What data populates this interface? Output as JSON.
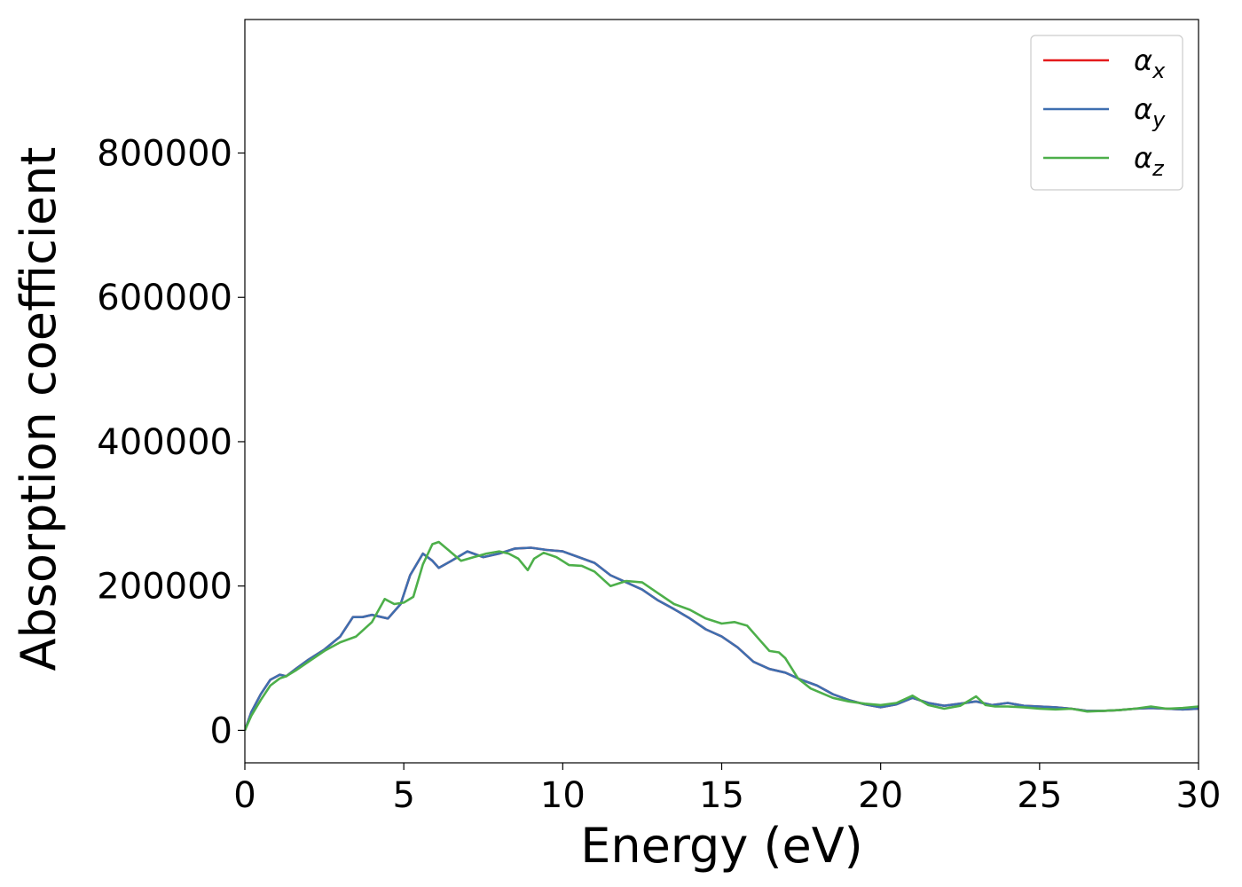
{
  "chart_data": {
    "type": "line",
    "title": "",
    "xlabel": "Energy (eV)",
    "ylabel": "Absorption coefficient",
    "xlim": [
      0,
      30
    ],
    "ylim": [
      -45000,
      985000
    ],
    "xticks": [
      0,
      5,
      10,
      15,
      20,
      25,
      30
    ],
    "yticks": [
      0,
      200000,
      400000,
      600000,
      800000
    ],
    "grid": false,
    "legend_position": "top-right",
    "series": [
      {
        "name": "α_x",
        "symbol": "α",
        "subscript": "x",
        "color": "#e41a1c",
        "x": [
          0,
          0.2,
          0.5,
          0.8,
          1.1,
          1.3,
          1.6,
          2.0,
          2.5,
          3.0,
          3.4,
          3.7,
          4.0,
          4.5,
          4.9,
          5.2,
          5.6,
          5.9,
          6.1,
          6.5,
          7.0,
          7.5,
          8.0,
          8.5,
          9.0,
          9.5,
          10.0,
          10.5,
          11.0,
          11.5,
          12.0,
          12.5,
          13.0,
          13.5,
          14.0,
          14.5,
          15.0,
          15.5,
          16.0,
          16.5,
          17.0,
          17.5,
          18.0,
          18.5,
          19.0,
          19.5,
          20.0,
          20.5,
          21.0,
          21.5,
          22.0,
          22.5,
          23.0,
          23.5,
          24.0,
          24.5,
          25.0,
          25.5,
          26.0,
          26.5,
          27.0,
          27.5,
          28.0,
          28.5,
          29.0,
          29.5,
          30.0
        ],
        "values": [
          0,
          25000,
          50000,
          70000,
          77000,
          75000,
          85000,
          98000,
          112000,
          130000,
          157000,
          157000,
          160000,
          155000,
          175000,
          215000,
          245000,
          235000,
          225000,
          235000,
          248000,
          240000,
          245000,
          252000,
          253000,
          250000,
          248000,
          240000,
          232000,
          215000,
          205000,
          195000,
          180000,
          168000,
          155000,
          140000,
          130000,
          115000,
          95000,
          85000,
          80000,
          70000,
          62000,
          50000,
          42000,
          36000,
          32000,
          36000,
          45000,
          38000,
          34000,
          37000,
          40000,
          35000,
          38000,
          34000,
          33000,
          32000,
          30000,
          27000,
          27000,
          28000,
          30000,
          31000,
          30000,
          29000,
          30000
        ]
      },
      {
        "name": "α_y",
        "symbol": "α",
        "subscript": "y",
        "color": "#3e6fb0",
        "x": [
          0,
          0.2,
          0.5,
          0.8,
          1.1,
          1.3,
          1.6,
          2.0,
          2.5,
          3.0,
          3.4,
          3.7,
          4.0,
          4.5,
          4.9,
          5.2,
          5.6,
          5.9,
          6.1,
          6.5,
          7.0,
          7.5,
          8.0,
          8.5,
          9.0,
          9.5,
          10.0,
          10.5,
          11.0,
          11.5,
          12.0,
          12.5,
          13.0,
          13.5,
          14.0,
          14.5,
          15.0,
          15.5,
          16.0,
          16.5,
          17.0,
          17.5,
          18.0,
          18.5,
          19.0,
          19.5,
          20.0,
          20.5,
          21.0,
          21.5,
          22.0,
          22.5,
          23.0,
          23.5,
          24.0,
          24.5,
          25.0,
          25.5,
          26.0,
          26.5,
          27.0,
          27.5,
          28.0,
          28.5,
          29.0,
          29.5,
          30.0
        ],
        "values": [
          0,
          25000,
          50000,
          70000,
          77000,
          75000,
          85000,
          98000,
          112000,
          130000,
          157000,
          157000,
          160000,
          155000,
          175000,
          215000,
          245000,
          235000,
          225000,
          235000,
          248000,
          240000,
          245000,
          252000,
          253000,
          250000,
          248000,
          240000,
          232000,
          215000,
          205000,
          195000,
          180000,
          168000,
          155000,
          140000,
          130000,
          115000,
          95000,
          85000,
          80000,
          70000,
          62000,
          50000,
          42000,
          36000,
          32000,
          36000,
          45000,
          38000,
          34000,
          37000,
          40000,
          35000,
          38000,
          34000,
          33000,
          32000,
          30000,
          27000,
          27000,
          28000,
          30000,
          31000,
          30000,
          29000,
          30000
        ]
      },
      {
        "name": "α_z",
        "symbol": "α",
        "subscript": "z",
        "color": "#4daf4a",
        "x": [
          0,
          0.2,
          0.5,
          0.8,
          1.1,
          1.3,
          1.6,
          2.0,
          2.5,
          3.0,
          3.5,
          4.0,
          4.4,
          4.7,
          5.0,
          5.3,
          5.6,
          5.9,
          6.1,
          6.4,
          6.8,
          7.2,
          7.6,
          8.0,
          8.3,
          8.6,
          8.9,
          9.1,
          9.4,
          9.8,
          10.2,
          10.6,
          11.0,
          11.5,
          12.0,
          12.5,
          13.0,
          13.5,
          14.0,
          14.5,
          15.0,
          15.4,
          15.8,
          16.2,
          16.5,
          16.8,
          17.0,
          17.4,
          17.8,
          18.5,
          19.0,
          19.5,
          20.0,
          20.5,
          21.0,
          21.5,
          22.0,
          22.5,
          23.0,
          23.3,
          23.6,
          24.0,
          24.5,
          25.0,
          25.5,
          26.0,
          26.5,
          27.0,
          27.5,
          28.0,
          28.5,
          29.0,
          29.5,
          30.0
        ],
        "values": [
          0,
          20000,
          42000,
          62000,
          72000,
          75000,
          83000,
          95000,
          110000,
          122000,
          130000,
          150000,
          182000,
          175000,
          177000,
          185000,
          230000,
          258000,
          261000,
          250000,
          235000,
          240000,
          245000,
          248000,
          245000,
          238000,
          222000,
          238000,
          246000,
          240000,
          229000,
          228000,
          220000,
          200000,
          207000,
          205000,
          190000,
          175000,
          167000,
          155000,
          148000,
          150000,
          145000,
          125000,
          110000,
          108000,
          100000,
          72000,
          58000,
          45000,
          40000,
          37000,
          35000,
          38000,
          48000,
          35000,
          30000,
          34000,
          47000,
          35000,
          33000,
          33000,
          32000,
          30000,
          29000,
          30000,
          26000,
          27000,
          28000,
          30000,
          33000,
          30000,
          31000,
          33000
        ]
      }
    ]
  }
}
